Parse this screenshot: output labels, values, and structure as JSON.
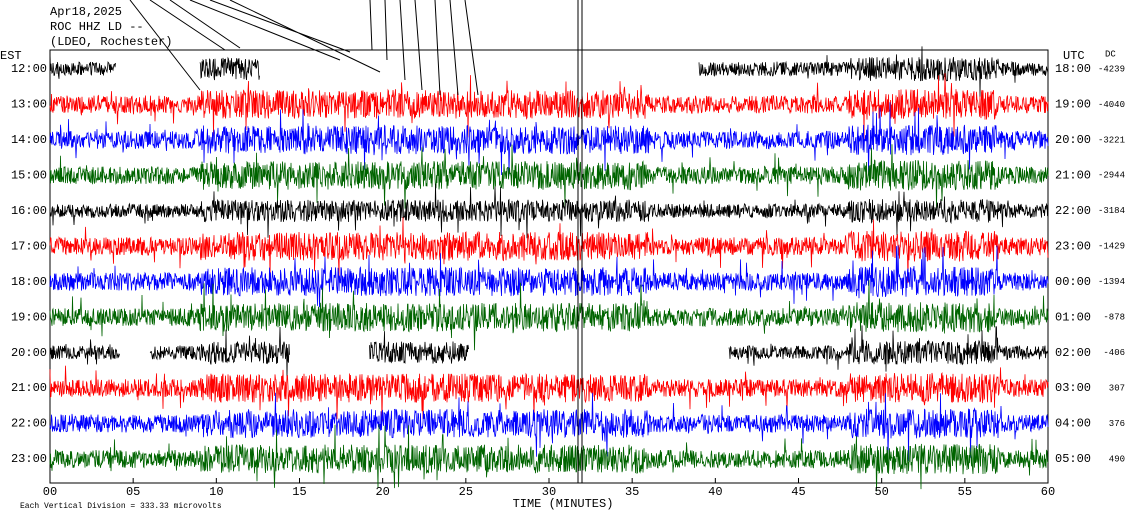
{
  "chart_data": {
    "type": "helicorder",
    "title_lines": [
      "Apr18,2025",
      "ROC HHZ LD --",
      "(LDEO, Rochester)"
    ],
    "left_label": "EST",
    "right_label": "UTC",
    "dc_label": "DC",
    "x_label": "TIME (MINUTES)",
    "footer": "Each Vertical Division =  333.33 microvolts",
    "xlim": [
      0,
      60
    ],
    "xticks": [
      {
        "value": 0,
        "label": "00"
      },
      {
        "value": 5,
        "label": "05"
      },
      10,
      15,
      20,
      25,
      30,
      35,
      40,
      45,
      50,
      55,
      60
    ],
    "rows": [
      {
        "local": "12:00",
        "utc": "18:00",
        "dc": -4239,
        "color": "#000000"
      },
      {
        "local": "13:00",
        "utc": "19:00",
        "dc": -4040,
        "color": "#ff0000"
      },
      {
        "local": "14:00",
        "utc": "20:00",
        "dc": -3221,
        "color": "#0000ff"
      },
      {
        "local": "15:00",
        "utc": "21:00",
        "dc": -2944,
        "color": "#006400"
      },
      {
        "local": "16:00",
        "utc": "22:00",
        "dc": -3184,
        "color": "#000000"
      },
      {
        "local": "17:00",
        "utc": "23:00",
        "dc": -1429,
        "color": "#ff0000"
      },
      {
        "local": "18:00",
        "utc": "00:00",
        "dc": -1394,
        "color": "#0000ff"
      },
      {
        "local": "19:00",
        "utc": "01:00",
        "dc": -878,
        "color": "#006400"
      },
      {
        "local": "20:00",
        "utc": "02:00",
        "dc": -406,
        "color": "#000000"
      },
      {
        "local": "21:00",
        "utc": "03:00",
        "dc": 307,
        "color": "#ff0000"
      },
      {
        "local": "22:00",
        "utc": "04:00",
        "dc": 376,
        "color": "#0000ff"
      },
      {
        "local": "23:00",
        "utc": "05:00",
        "dc": 490,
        "color": "#006400"
      }
    ]
  }
}
